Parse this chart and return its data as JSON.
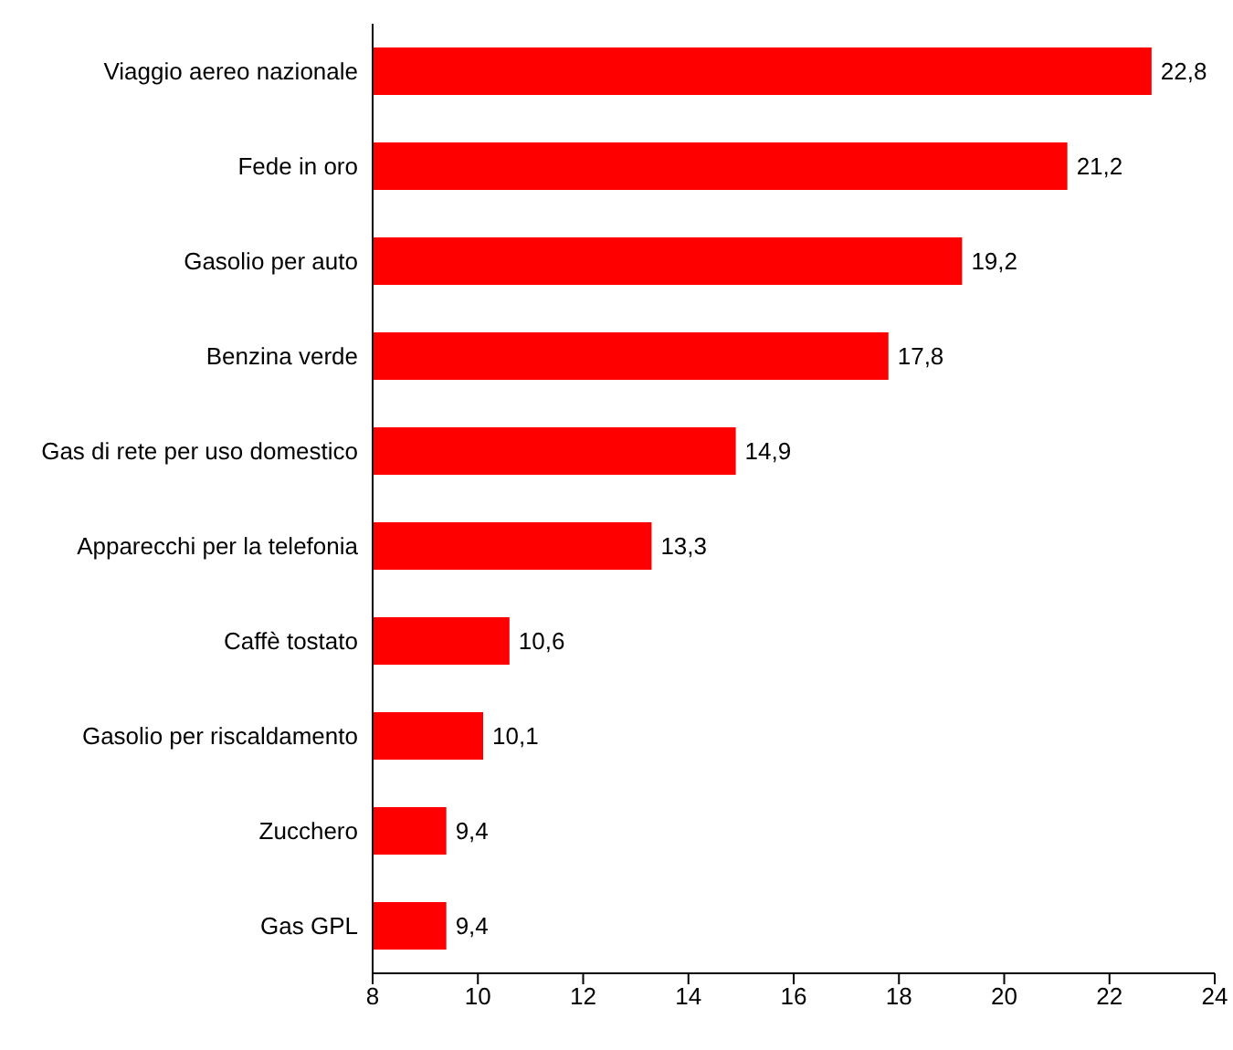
{
  "chart_data": {
    "type": "bar",
    "orientation": "horizontal",
    "categories": [
      "Viaggio aereo nazionale",
      "Fede in oro",
      "Gasolio per auto",
      "Benzina verde",
      "Gas di rete per uso domestico",
      "Apparecchi per la telefonia",
      "Caffè tostato",
      "Gasolio per riscaldamento",
      "Zucchero",
      "Gas GPL"
    ],
    "values": [
      22.8,
      21.2,
      19.2,
      17.8,
      14.9,
      13.3,
      10.6,
      10.1,
      9.4,
      9.4
    ],
    "value_labels": [
      "22,8",
      "21,2",
      "19,2",
      "17,8",
      "14,9",
      "13,3",
      "10,6",
      "10,1",
      "9,4",
      "9,4"
    ],
    "color": "#ff0000",
    "xlim": [
      8,
      24
    ],
    "xticks": [
      8,
      10,
      12,
      14,
      16,
      18,
      20,
      22,
      24
    ],
    "grid": false,
    "legend": false
  }
}
